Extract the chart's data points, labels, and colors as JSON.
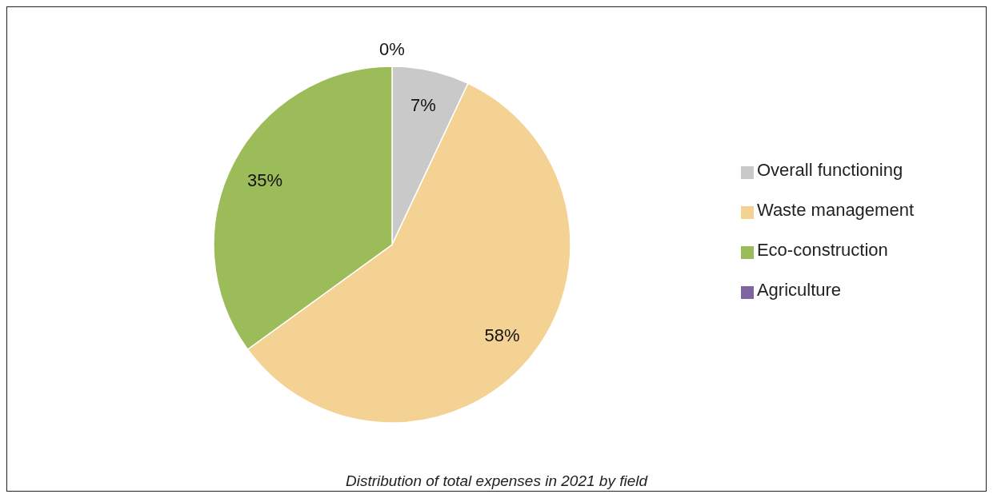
{
  "chart_data": {
    "type": "pie",
    "categories": [
      "Overall functioning",
      "Waste management",
      "Eco-construction",
      "Agriculture"
    ],
    "values": [
      7,
      58,
      35,
      0
    ],
    "colors": [
      "#c9c9c9",
      "#f4d293",
      "#9cbb59",
      "#8064a2"
    ],
    "value_labels": [
      "7%",
      "58%",
      "35%",
      "0%"
    ],
    "legend": "right",
    "annotations": [
      "Distribution of total expenses in 2021 by field"
    ]
  }
}
